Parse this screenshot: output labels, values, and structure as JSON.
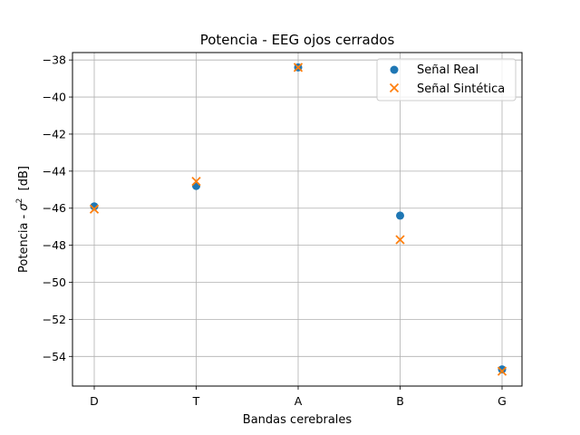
{
  "chart_data": {
    "type": "scatter",
    "title": "Potencia - EEG ojos cerrados",
    "xlabel": "Bandas cerebrales",
    "ylabel_prefix": "Potencia - ",
    "ylabel_sigma": "σ",
    "ylabel_exp": "2",
    "ylabel_unit": "  [dB]",
    "categories": [
      "D",
      "T",
      "A",
      "B",
      "G"
    ],
    "ylim": [
      -55.6,
      -37.6
    ],
    "yticks": [
      -38,
      -40,
      -42,
      -44,
      -46,
      -48,
      -50,
      -52,
      -54
    ],
    "ytick_labels": [
      "−38",
      "−40",
      "−42",
      "−44",
      "−46",
      "−48",
      "−50",
      "−52",
      "−54"
    ],
    "grid": true,
    "legend_position": "top-right",
    "series": [
      {
        "name": "Señal Real",
        "marker": "circle",
        "color": "#1f77b4",
        "values": [
          -45.9,
          -44.8,
          -38.4,
          -46.4,
          -54.7
        ]
      },
      {
        "name": "Señal Sintética",
        "marker": "x",
        "color": "#ff7f0e",
        "values": [
          -46.05,
          -44.55,
          -38.4,
          -47.7,
          -54.8
        ]
      }
    ]
  }
}
